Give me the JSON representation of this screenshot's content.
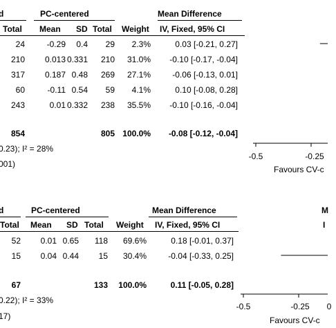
{
  "panels": [
    {
      "header": {
        "group_left_fragment": "d",
        "group_right": "PC-centered",
        "effect_title": "Mean Difference",
        "columns": [
          "Total",
          "Mean",
          "SD",
          "Total",
          "Weight",
          "IV, Fixed, 95% CI"
        ]
      },
      "rows": [
        {
          "total1": "24",
          "mean": "-0.29",
          "sd": "0.4",
          "total2": "29",
          "weight": "2.3%",
          "ci": "0.03 [-0.21, 0.27]"
        },
        {
          "total1": "210",
          "mean": "0.013",
          "sd": "0.331",
          "total2": "210",
          "weight": "31.0%",
          "ci": "-0.10 [-0.17, -0.04]"
        },
        {
          "total1": "317",
          "mean": "0.187",
          "sd": "0.48",
          "total2": "269",
          "weight": "27.1%",
          "ci": "-0.06 [-0.13, 0.01]"
        },
        {
          "total1": "60",
          "mean": "-0.11",
          "sd": "0.54",
          "total2": "59",
          "weight": "4.1%",
          "ci": "0.10 [-0.08, 0.28]"
        },
        {
          "total1": "243",
          "mean": "0.01",
          "sd": "0.332",
          "total2": "238",
          "weight": "35.5%",
          "ci": "-0.10 [-0.16, -0.04]"
        }
      ],
      "total": {
        "total1": "854",
        "total2": "805",
        "weight": "100.0%",
        "ci": "-0.08 [-0.12, -0.04]"
      },
      "heterogeneity": "0.23); I² = 28%",
      "overall_test": "001)",
      "axis": {
        "ticks": [
          "-0.5",
          "-0.25"
        ],
        "favours": "Favours CV-c"
      }
    },
    {
      "header": {
        "group_left_fragment": "d",
        "group_right": "PC-centered",
        "effect_title": "Mean Difference",
        "effect_title_right": "M",
        "columns": [
          "Total",
          "Mean",
          "SD",
          "Total",
          "Weight",
          "IV, Fixed, 95% CI"
        ],
        "column_right": "I"
      },
      "rows": [
        {
          "total1": "52",
          "mean": "0.01",
          "sd": "0.65",
          "total2": "118",
          "weight": "69.6%",
          "ci": "0.18 [-0.01, 0.37]"
        },
        {
          "total1": "15",
          "mean": "0.04",
          "sd": "0.44",
          "total2": "15",
          "weight": "30.4%",
          "ci": "-0.04 [-0.33, 0.25]"
        }
      ],
      "total": {
        "total1": "67",
        "total2": "133",
        "weight": "100.0%",
        "ci": "0.11 [-0.05, 0.28]"
      },
      "heterogeneity": "0.22); I² = 33%",
      "overall_test": "17)",
      "axis": {
        "ticks": [
          "-0.5",
          "-0.25",
          "0"
        ],
        "favours": "Favours CV-c"
      }
    }
  ],
  "chart_data": [
    {
      "type": "table",
      "title": "",
      "effect_measure": "Mean Difference, IV, Fixed, 95% CI",
      "studies": [
        {
          "mean_difference": 0.03,
          "ci": [
            -0.21,
            0.27
          ],
          "weight": 2.3
        },
        {
          "mean_difference": -0.1,
          "ci": [
            -0.17,
            -0.04
          ],
          "weight": 31.0
        },
        {
          "mean_difference": -0.06,
          "ci": [
            -0.13,
            0.01
          ],
          "weight": 27.1
        },
        {
          "mean_difference": 0.1,
          "ci": [
            -0.08,
            0.28
          ],
          "weight": 4.1
        },
        {
          "mean_difference": -0.1,
          "ci": [
            -0.16,
            -0.04
          ],
          "weight": 35.5
        }
      ],
      "pooled": {
        "mean_difference": -0.08,
        "ci": [
          -0.12,
          -0.04
        ],
        "weight": 100.0
      },
      "x_axis": {
        "ticks": [
          -0.5,
          -0.25
        ],
        "xlim": [
          -0.5,
          0.25
        ]
      }
    },
    {
      "type": "table",
      "title": "",
      "effect_measure": "Mean Difference, IV, Fixed, 95% CI",
      "studies": [
        {
          "mean_difference": 0.18,
          "ci": [
            -0.01,
            0.37
          ],
          "weight": 69.6
        },
        {
          "mean_difference": -0.04,
          "ci": [
            -0.33,
            0.25
          ],
          "weight": 30.4
        }
      ],
      "pooled": {
        "mean_difference": 0.11,
        "ci": [
          -0.05,
          0.28
        ],
        "weight": 100.0
      },
      "x_axis": {
        "ticks": [
          -0.5,
          -0.25,
          0
        ],
        "xlim": [
          -0.5,
          0.25
        ]
      }
    }
  ]
}
